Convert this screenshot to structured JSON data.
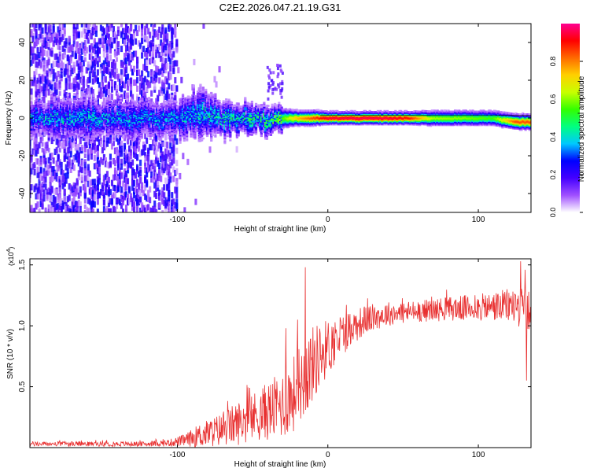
{
  "title": "C2E2.2026.047.21.19.G31",
  "chart_data": [
    {
      "type": "heatmap",
      "title": "C2E2.2026.047.21.19.G31",
      "xlabel": "Height of straight line (km)",
      "ylabel": "Frequency (Hz)",
      "xlim": [
        -198,
        135
      ],
      "ylim": [
        -50,
        50
      ],
      "xticks": [
        -100,
        0,
        100
      ],
      "xtick_labels": [
        "-100",
        "0",
        "100"
      ],
      "yticks": [
        -40,
        -20,
        0,
        20,
        40
      ],
      "ytick_labels": [
        "-40",
        "-20",
        "0",
        "20",
        "40"
      ],
      "colorbar": {
        "label": "Normalized spectral amplitude",
        "range": [
          0,
          1
        ],
        "ticks": [
          0,
          0.2,
          0.4,
          0.6,
          0.8
        ],
        "tick_labels": [
          "0.0",
          "0.2",
          "0.4",
          "0.6",
          "0.8"
        ],
        "colormap": [
          "#ffffff",
          "#a050ff",
          "#4400ff",
          "#0000ff",
          "#00c8ff",
          "#00ff80",
          "#33ff00",
          "#c8ff00",
          "#ffd000",
          "#ff6a00",
          "#ff0000",
          "#ff0090"
        ]
      },
      "signal_band": [
        {
          "x": -195,
          "y": 0,
          "width_hz": 6,
          "amp": 0.33
        },
        {
          "x": -170,
          "y": 0,
          "width_hz": 7,
          "amp": 0.35
        },
        {
          "x": -145,
          "y": 0,
          "width_hz": 6,
          "amp": 0.34
        },
        {
          "x": -120,
          "y": 0,
          "width_hz": 6,
          "amp": 0.32
        },
        {
          "x": -100,
          "y": 0,
          "width_hz": 6,
          "amp": 0.33
        },
        {
          "x": -85,
          "y": 2,
          "width_hz": 8,
          "amp": 0.36
        },
        {
          "x": -70,
          "y": 0,
          "width_hz": 6,
          "amp": 0.38
        },
        {
          "x": -55,
          "y": 0,
          "width_hz": 5,
          "amp": 0.4
        },
        {
          "x": -40,
          "y": -1,
          "width_hz": 4.5,
          "amp": 0.45
        },
        {
          "x": -30,
          "y": 0,
          "width_hz": 4,
          "amp": 0.55
        },
        {
          "x": -20,
          "y": 0,
          "width_hz": 3,
          "amp": 0.75
        },
        {
          "x": -10,
          "y": 0,
          "width_hz": 3,
          "amp": 0.85
        },
        {
          "x": 0,
          "y": 0,
          "width_hz": 2.5,
          "amp": 0.95
        },
        {
          "x": 20,
          "y": 0,
          "width_hz": 2.5,
          "amp": 0.97
        },
        {
          "x": 40,
          "y": 0,
          "width_hz": 2.5,
          "amp": 0.96
        },
        {
          "x": 55,
          "y": 0,
          "width_hz": 2.5,
          "amp": 0.9
        },
        {
          "x": 70,
          "y": 0,
          "width_hz": 3,
          "amp": 0.62
        },
        {
          "x": 90,
          "y": 0,
          "width_hz": 3,
          "amp": 0.6
        },
        {
          "x": 110,
          "y": 0,
          "width_hz": 3,
          "amp": 0.55
        },
        {
          "x": 125,
          "y": -2,
          "width_hz": 3,
          "amp": 0.85
        },
        {
          "x": 135,
          "y": -2,
          "width_hz": 3,
          "amp": 0.85
        }
      ]
    },
    {
      "type": "line",
      "xlabel": "Height of straight line (km)",
      "ylabel": "SNR (10 * v/v)",
      "scale_label": "(x10",
      "scale_exponent": "4",
      "scale_close": ")",
      "xlim": [
        -198,
        135
      ],
      "ylim": [
        0,
        1.55
      ],
      "xticks": [
        -100,
        0,
        100
      ],
      "xtick_labels": [
        "-100",
        "0",
        "100"
      ],
      "yticks": [
        0.5,
        1.0,
        1.5
      ],
      "ytick_labels": [
        "0.5",
        "1.0",
        "1.5"
      ],
      "line_color": "#e83030",
      "series": [
        {
          "name": "SNR",
          "envelope": {
            "x": [
              -198,
              -160,
              -120,
              -105,
              -95,
              -85,
              -70,
              -60,
              -50,
              -40,
              -30,
              -22,
              -15,
              -8,
              -2,
              5,
              15,
              25,
              40,
              60,
              80,
              100,
              115,
              125,
              135
            ],
            "base": [
              0.03,
              0.03,
              0.03,
              0.04,
              0.06,
              0.1,
              0.15,
              0.2,
              0.25,
              0.3,
              0.35,
              0.45,
              0.6,
              0.72,
              0.8,
              0.88,
              0.98,
              1.05,
              1.1,
              1.12,
              1.14,
              1.15,
              1.16,
              1.17,
              1.1
            ],
            "spread": [
              0.02,
              0.02,
              0.02,
              0.03,
              0.05,
              0.1,
              0.14,
              0.18,
              0.2,
              0.24,
              0.28,
              0.32,
              0.35,
              0.3,
              0.25,
              0.2,
              0.15,
              0.12,
              0.1,
              0.09,
              0.1,
              0.11,
              0.13,
              0.16,
              0.18
            ]
          },
          "spikes": [
            {
              "x": -15,
              "y": 1.48
            },
            {
              "x": -28,
              "y": 0.98
            },
            {
              "x": -20,
              "y": 1.05
            },
            {
              "x": 128,
              "y": 1.53
            },
            {
              "x": 131,
              "y": 1.46
            },
            {
              "x": 132,
              "y": 0.55
            },
            {
              "x": 135,
              "y": 0.72
            }
          ]
        }
      ]
    }
  ]
}
